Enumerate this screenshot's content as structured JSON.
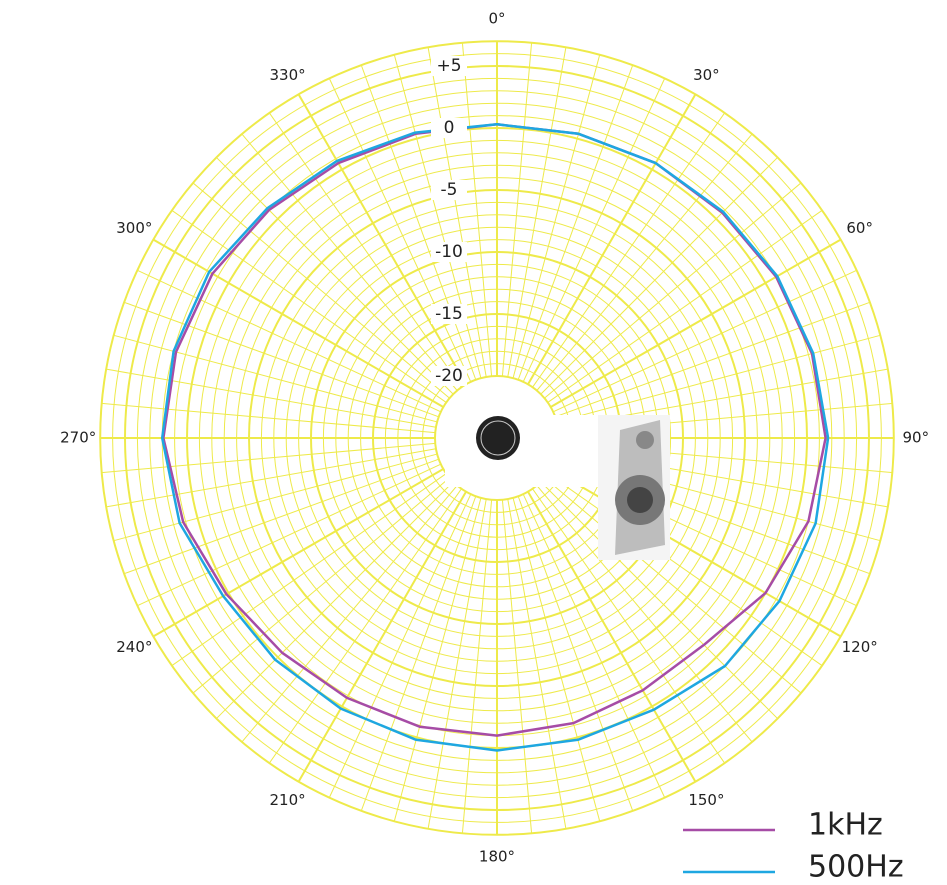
{
  "chart_data": {
    "type": "polar",
    "theta": [
      0,
      15,
      30,
      45,
      60,
      75,
      90,
      105,
      120,
      135,
      150,
      165,
      180,
      195,
      210,
      225,
      240,
      255,
      270,
      285,
      300,
      315,
      330,
      345
    ],
    "series": [
      {
        "name": "1kHz",
        "color": "#a64ca6",
        "values": [
          0.3,
          0.4,
          0.6,
          0.7,
          1.0,
          1.3,
          1.5,
          1.0,
          0,
          -1.4,
          -1.5,
          -1.2,
          -1.0,
          -0.9,
          -0.8,
          -0.5,
          0.2,
          1.2,
          1.9,
          1.8,
          1.5,
          1.0,
          0.6,
          0.4
        ]
      },
      {
        "name": "500Hz",
        "color": "#1ea7e1",
        "values": [
          0.3,
          0.4,
          0.6,
          0.8,
          1.1,
          1.4,
          1.7,
          1.6,
          1.3,
          1.0,
          0.3,
          0.2,
          0.2,
          0.2,
          0.2,
          0.3,
          0.5,
          1.5,
          2.0,
          2.0,
          1.8,
          1.2,
          0.8,
          0.5
        ]
      }
    ],
    "rlim": [
      -25,
      7
    ],
    "rticks": [
      -20,
      -15,
      -10,
      -5,
      0,
      {
        "value": 5,
        "label": "+5"
      }
    ],
    "thetaticks": [
      {
        "value": 0,
        "label": "0°"
      },
      {
        "value": 30,
        "label": "30°"
      },
      {
        "value": 60,
        "label": "60°"
      },
      {
        "value": 90,
        "label": "90°"
      },
      {
        "value": 120,
        "label": "120°"
      },
      {
        "value": 150,
        "label": "150°"
      },
      {
        "value": 180,
        "label": "180°"
      },
      {
        "value": 210,
        "label": "210°"
      },
      {
        "value": 240,
        "label": "240°"
      },
      {
        "value": 270,
        "label": "270°"
      },
      {
        "value": 300,
        "label": "300°"
      },
      {
        "value": 330,
        "label": "330°"
      }
    ],
    "grid": true,
    "grid_color": "#eeea4a",
    "legend": "lower right"
  }
}
